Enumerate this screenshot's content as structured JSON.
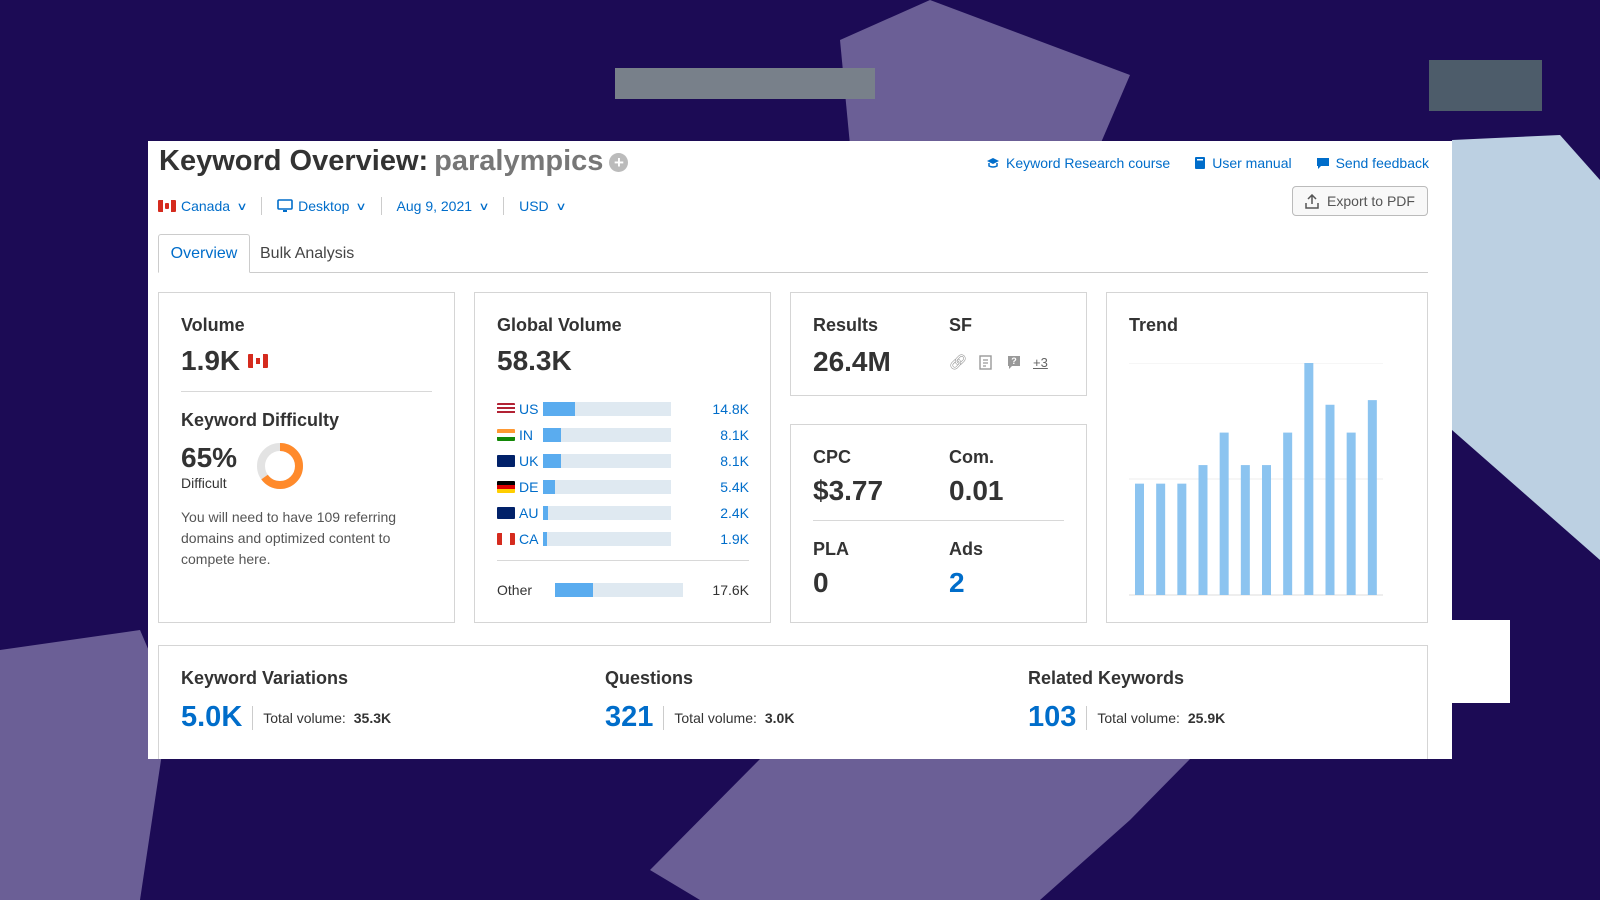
{
  "header": {
    "title_prefix": "Keyword Overview:",
    "keyword": "paralympics",
    "links": [
      {
        "label": "Keyword Research course",
        "icon": "graduation-cap-icon"
      },
      {
        "label": "User manual",
        "icon": "book-icon"
      },
      {
        "label": "Send feedback",
        "icon": "speech-bubble-icon"
      }
    ],
    "export_label": "Export to PDF"
  },
  "filters": {
    "country": "Canada",
    "device": "Desktop",
    "date": "Aug 9, 2021",
    "currency": "USD"
  },
  "tabs": [
    "Overview",
    "Bulk Analysis"
  ],
  "volume": {
    "label": "Volume",
    "value": "1.9K"
  },
  "difficulty": {
    "label": "Keyword Difficulty",
    "value": "65%",
    "percent": 65,
    "level": "Difficult",
    "description": "You will need to have 109 referring domains and optimized content to compete here."
  },
  "global_volume": {
    "label": "Global Volume",
    "value": "58.3K",
    "rows": [
      {
        "code": "US",
        "value": "14.8K",
        "share": 0.25
      },
      {
        "code": "IN",
        "value": "8.1K",
        "share": 0.14
      },
      {
        "code": "UK",
        "value": "8.1K",
        "share": 0.14
      },
      {
        "code": "DE",
        "value": "5.4K",
        "share": 0.09
      },
      {
        "code": "AU",
        "value": "2.4K",
        "share": 0.04
      },
      {
        "code": "CA",
        "value": "1.9K",
        "share": 0.035
      }
    ],
    "other": {
      "label": "Other",
      "value": "17.6K",
      "share": 0.3
    }
  },
  "results": {
    "label": "Results",
    "value": "26.4M",
    "sf_label": "SF",
    "sf_extra": "+3"
  },
  "cpc": {
    "label": "CPC",
    "value": "$3.77"
  },
  "com": {
    "label": "Com.",
    "value": "0.01"
  },
  "pla": {
    "label": "PLA",
    "value": "0"
  },
  "ads": {
    "label": "Ads",
    "value": "2"
  },
  "trend": {
    "label": "Trend",
    "values": [
      0.48,
      0.48,
      0.48,
      0.56,
      0.7,
      0.56,
      0.56,
      0.7,
      1.0,
      0.82,
      0.7,
      0.84
    ]
  },
  "bottom": [
    {
      "label": "Keyword Variations",
      "count": "5.0K",
      "tv_label": "Total volume:",
      "tv_value": "35.3K"
    },
    {
      "label": "Questions",
      "count": "321",
      "tv_label": "Total volume:",
      "tv_value": "3.0K"
    },
    {
      "label": "Related Keywords",
      "count": "103",
      "tv_label": "Total volume:",
      "tv_value": "25.9K"
    }
  ],
  "colors": {
    "accent": "#006dca",
    "bar": "#5aacef",
    "trend_bar": "#8cc4f0",
    "difficulty": "#ff8a2b",
    "background": "#1c0b55"
  }
}
